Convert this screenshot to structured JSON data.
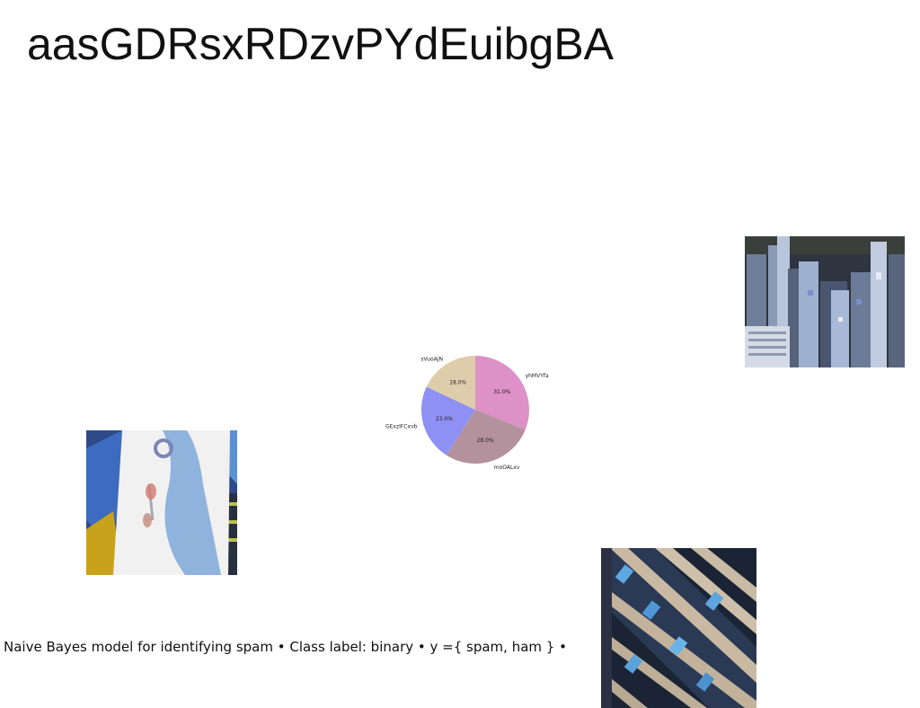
{
  "page": {
    "title": "aasGDRsxRDzvPYdEuibgBA",
    "caption": "Naive Bayes model for identifying spam • Class label: binary • y ={ spam, ham } •"
  },
  "images": {
    "city": {
      "label": "aerial city skyscrapers photo"
    },
    "person": {
      "label": "person wearing headphones in front of graffiti wall photo"
    },
    "facade": {
      "label": "building facade with blue windows photo"
    }
  },
  "chart_data": {
    "type": "pie",
    "start_angle_deg": 90,
    "direction": "clockwise",
    "categories": [
      "yhMVYfa",
      "moOALxv",
      "GExzIFCxvb",
      "sVuoAjN"
    ],
    "values": [
      31.0,
      28.0,
      23.0,
      18.0
    ],
    "value_labels": [
      "31.0%",
      "28.0%",
      "23.0%",
      "18.0%"
    ],
    "colors": [
      "#dd91c7",
      "#b3929e",
      "#8f90f4",
      "#decdab"
    ]
  }
}
